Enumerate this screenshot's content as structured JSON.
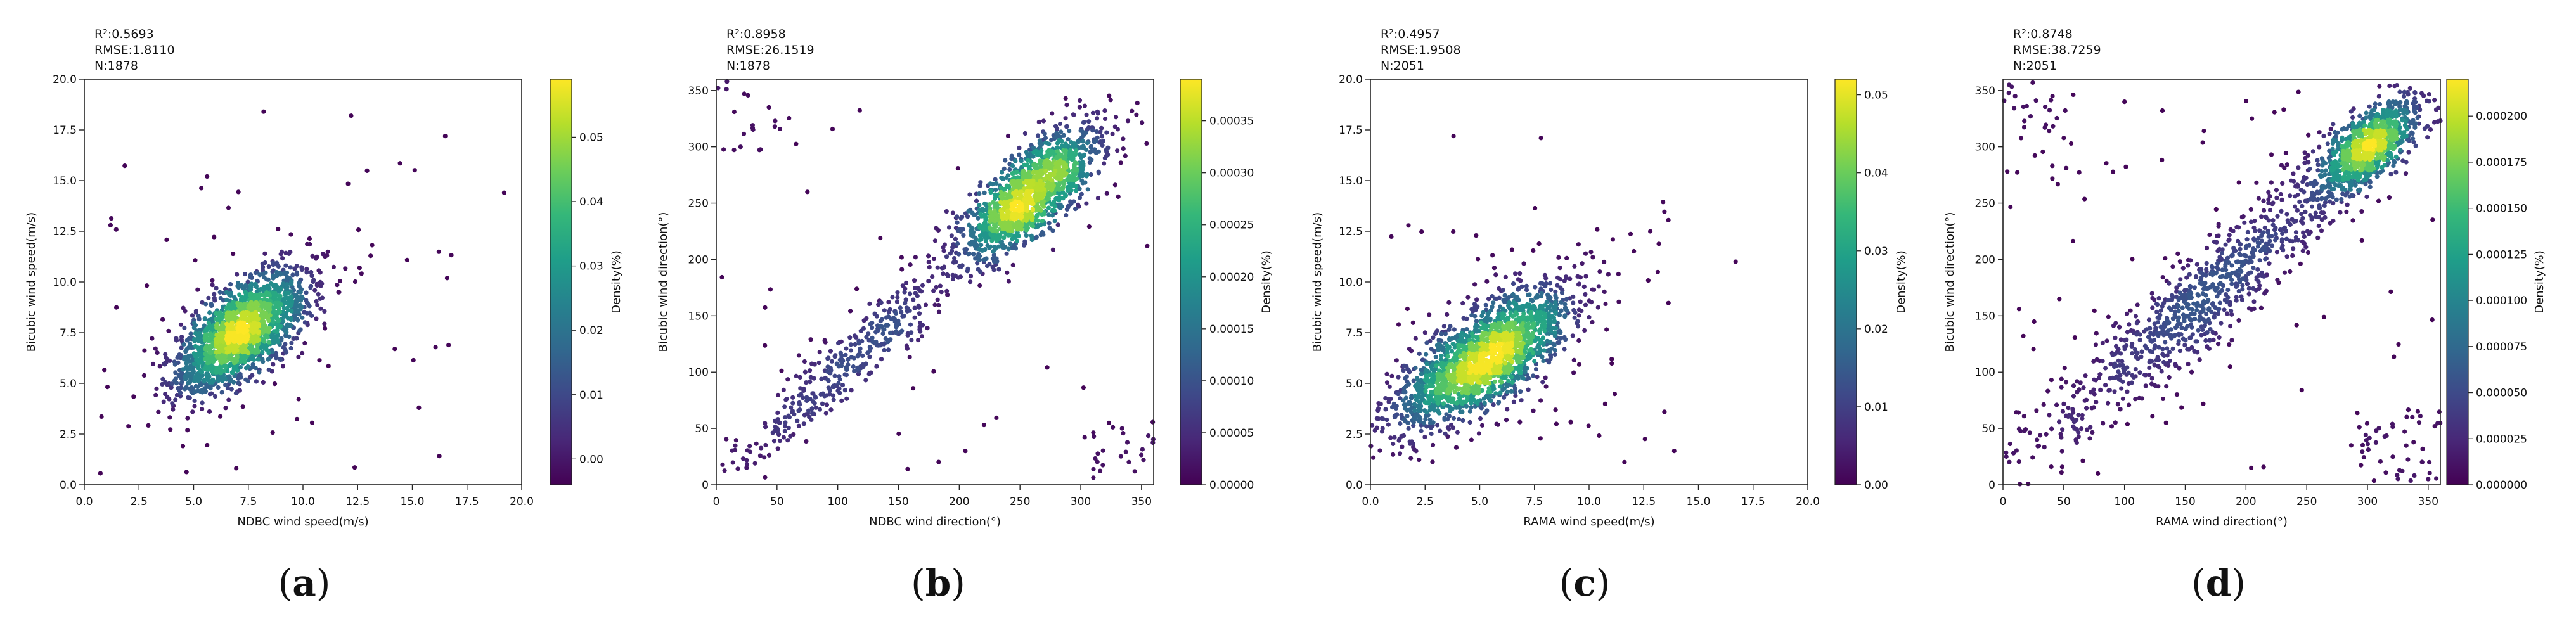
{
  "figure": {
    "panels": [
      {
        "id": "a",
        "stats": [
          "R²:0.5693",
          "RMSE:1.8110",
          "N:1878"
        ],
        "xlabel": "NDBC wind speed(m/s)",
        "ylabel": "Bicubic wind speed(m/s)",
        "cbar_label": "Density(%)",
        "caption_letter": "a"
      },
      {
        "id": "b",
        "stats": [
          "R²:0.8958",
          "RMSE:26.1519",
          "N:1878"
        ],
        "xlabel": "NDBC wind direction(°)",
        "ylabel": "Bicubic wind direction(°)",
        "cbar_label": "Density(%)",
        "caption_letter": "b"
      },
      {
        "id": "c",
        "stats": [
          "R²:0.4957",
          "RMSE:1.9508",
          "N:2051"
        ],
        "xlabel": "RAMA wind speed(m/s)",
        "ylabel": "Bicubic wind speed(m/s)",
        "cbar_label": "Density(%)",
        "caption_letter": "c"
      },
      {
        "id": "d",
        "stats": [
          "R²:0.8748",
          "RMSE:38.7259",
          "N:2051"
        ],
        "xlabel": "RAMA wind direction(°)",
        "ylabel": "Bicubic wind direction(°)",
        "cbar_label": "Density(%)",
        "caption_letter": "d"
      }
    ]
  },
  "colors": {
    "viridis": [
      "#440154",
      "#482878",
      "#3e4989",
      "#31688e",
      "#26828e",
      "#1f9e89",
      "#35b779",
      "#6ece58",
      "#b5de2b",
      "#fde725"
    ],
    "axis": "#222222",
    "text": "#111111"
  },
  "chart_data": [
    {
      "type": "scatter",
      "title": "",
      "xlabel": "NDBC wind speed(m/s)",
      "ylabel": "Bicubic wind speed(m/s)",
      "xlim": [
        0,
        20
      ],
      "ylim": [
        0,
        20
      ],
      "xticks": [
        0.0,
        2.5,
        5.0,
        7.5,
        10.0,
        12.5,
        15.0,
        17.5,
        20.0
      ],
      "yticks": [
        0.0,
        2.5,
        5.0,
        7.5,
        10.0,
        12.5,
        15.0,
        17.5,
        20.0
      ],
      "tick_decimals": 1,
      "colorbar": {
        "label": "Density(%)",
        "min": -0.004,
        "max": 0.059,
        "ticks": [
          0.0,
          0.01,
          0.02,
          0.03,
          0.04,
          0.05
        ],
        "tick_decimals": 2
      },
      "n_points": 1878,
      "clusters": [
        {
          "cx": 7.2,
          "cy": 7.6,
          "sx": 2.0,
          "sy": 0.9,
          "angle": 45,
          "weight": 1.0
        }
      ],
      "outliers": [
        {
          "xmin": 0.5,
          "xmax": 17,
          "ymin": 0.5,
          "ymax": 16,
          "count": 55
        }
      ],
      "highlights": [
        [
          19.2,
          14.4
        ],
        [
          8.2,
          18.4
        ],
        [
          12.2,
          18.2
        ],
        [
          15.3,
          3.8
        ],
        [
          16.5,
          17.2
        ],
        [
          1.2,
          12.8
        ]
      ],
      "stats": {
        "R2": 0.5693,
        "RMSE": 1.811,
        "N": 1878
      }
    },
    {
      "type": "scatter",
      "title": "",
      "xlabel": "NDBC wind direction(°)",
      "ylabel": "Bicubic wind direction(°)",
      "xlim": [
        0,
        360
      ],
      "ylim": [
        0,
        360
      ],
      "xticks": [
        0,
        50,
        100,
        150,
        200,
        250,
        300,
        350
      ],
      "yticks": [
        0,
        50,
        100,
        150,
        200,
        250,
        300,
        350
      ],
      "tick_decimals": 0,
      "colorbar": {
        "label": "Density(%)",
        "min": 0,
        "max": 0.00039,
        "ticks": [
          0.0,
          5e-05,
          0.0001,
          0.00015,
          0.0002,
          0.00025,
          0.0003,
          0.00035
        ],
        "tick_decimals": 5
      },
      "n_points": 1878,
      "clusters": [
        {
          "cx": 258,
          "cy": 258,
          "sx": 40,
          "sy": 15,
          "angle": 45,
          "weight": 0.78
        },
        {
          "cx": 110,
          "cy": 110,
          "sx": 70,
          "sy": 12,
          "angle": 45,
          "weight": 0.22
        }
      ],
      "outliers": [
        {
          "xmin": 0,
          "xmax": 55,
          "ymin": 290,
          "ymax": 360,
          "count": 18
        },
        {
          "xmin": 300,
          "xmax": 360,
          "ymin": 0,
          "ymax": 60,
          "count": 25
        },
        {
          "xmin": 0,
          "xmax": 360,
          "ymin": 0,
          "ymax": 360,
          "count": 30
        }
      ],
      "highlights": [
        [
          20,
          300
        ],
        [
          75,
          260
        ],
        [
          205,
          30
        ],
        [
          320,
          290
        ]
      ],
      "stats": {
        "R2": 0.8958,
        "RMSE": 26.1519,
        "N": 1878
      }
    },
    {
      "type": "scatter",
      "title": "",
      "xlabel": "RAMA wind speed(m/s)",
      "ylabel": "Bicubic wind speed(m/s)",
      "xlim": [
        0,
        20
      ],
      "ylim": [
        0,
        20
      ],
      "xticks": [
        0.0,
        2.5,
        5.0,
        7.5,
        10.0,
        12.5,
        15.0,
        17.5,
        20.0
      ],
      "yticks": [
        0.0,
        2.5,
        5.0,
        7.5,
        10.0,
        12.5,
        15.0,
        17.5,
        20.0
      ],
      "tick_decimals": 1,
      "colorbar": {
        "label": "Density(%)",
        "min": 0,
        "max": 0.052,
        "ticks": [
          0.0,
          0.01,
          0.02,
          0.03,
          0.04,
          0.05
        ],
        "tick_decimals": 2
      },
      "n_points": 2051,
      "clusters": [
        {
          "cx": 5.2,
          "cy": 6.2,
          "sx": 2.5,
          "sy": 1.0,
          "angle": 40,
          "weight": 1.0
        }
      ],
      "outliers": [
        {
          "xmin": 0.5,
          "xmax": 14,
          "ymin": 1,
          "ymax": 14,
          "count": 60
        }
      ],
      "highlights": [
        [
          16.7,
          11.0
        ],
        [
          3.8,
          17.2
        ],
        [
          7.8,
          17.1
        ],
        [
          12.8,
          12.5
        ]
      ],
      "stats": {
        "R2": 0.4957,
        "RMSE": 1.9508,
        "N": 2051
      }
    },
    {
      "type": "scatter",
      "title": "",
      "xlabel": "RAMA wind direction(°)",
      "ylabel": "Bicubic wind direction(°)",
      "xlim": [
        0,
        360
      ],
      "ylim": [
        0,
        360
      ],
      "xticks": [
        0,
        50,
        100,
        150,
        200,
        250,
        300,
        350
      ],
      "yticks": [
        0,
        50,
        100,
        150,
        200,
        250,
        300,
        350
      ],
      "tick_decimals": 0,
      "colorbar": {
        "label": "Density(%)",
        "min": 0,
        "max": 0.00022,
        "ticks": [
          0.0,
          2.5e-05,
          5e-05,
          7.5e-05,
          0.0001,
          0.000125,
          0.00015,
          0.000175,
          0.0002
        ],
        "tick_decimals": 6
      },
      "n_points": 2051,
      "clusters": [
        {
          "cx": 300,
          "cy": 300,
          "sx": 28,
          "sy": 12,
          "angle": 45,
          "weight": 0.5
        },
        {
          "cx": 170,
          "cy": 170,
          "sx": 100,
          "sy": 18,
          "angle": 45,
          "weight": 0.5
        }
      ],
      "outliers": [
        {
          "xmin": 0,
          "xmax": 60,
          "ymin": 270,
          "ymax": 360,
          "count": 30
        },
        {
          "xmin": 290,
          "xmax": 360,
          "ymin": 0,
          "ymax": 70,
          "count": 45
        },
        {
          "xmin": 0,
          "xmax": 360,
          "ymin": 0,
          "ymax": 360,
          "count": 60
        }
      ],
      "highlights": [
        [
          5,
          355
        ],
        [
          10,
          345
        ],
        [
          350,
          5
        ],
        [
          345,
          20
        ],
        [
          100,
          340
        ]
      ],
      "stats": {
        "R2": 0.8748,
        "RMSE": 38.7259,
        "N": 2051
      }
    }
  ]
}
